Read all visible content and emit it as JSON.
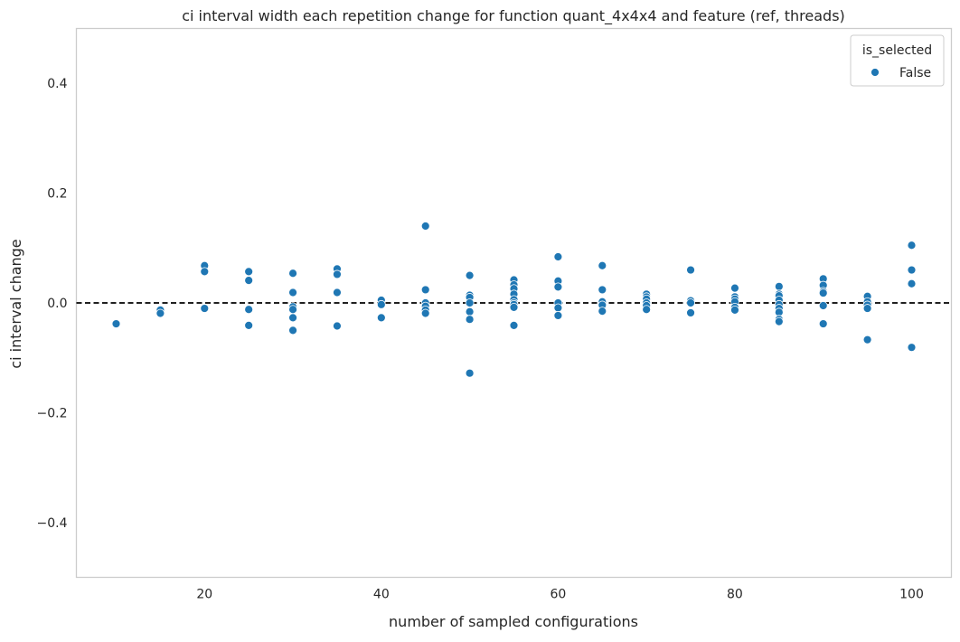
{
  "chart_data": {
    "type": "scatter",
    "title": "ci interval width each repetition change for function quant_4x4x4 and feature (ref, threads)",
    "xlabel": "number of sampled configurations",
    "ylabel": "ci interval change",
    "xlim": [
      5.5,
      104.5
    ],
    "ylim": [
      -0.5,
      0.5
    ],
    "xticks": [
      20,
      40,
      60,
      80,
      100
    ],
    "xtick_labels": [
      "20",
      "40",
      "60",
      "80",
      "100"
    ],
    "yticks": [
      -0.4,
      -0.2,
      0.0,
      0.2,
      0.4
    ],
    "ytick_labels": [
      "−0.4",
      "−0.2",
      "0.0",
      "0.2",
      "0.4"
    ],
    "grid": false,
    "reference_line": {
      "y": 0.0,
      "style": "dashed",
      "color": "#000000"
    },
    "legend": {
      "title": "is_selected",
      "placement": "top-right",
      "entries": [
        "False"
      ]
    },
    "series": [
      {
        "name": "False",
        "color": "#1f77b4",
        "points": [
          [
            10,
            -0.038
          ],
          [
            15,
            -0.013
          ],
          [
            15,
            -0.019
          ],
          [
            20,
            0.068
          ],
          [
            20,
            0.057
          ],
          [
            20,
            -0.01
          ],
          [
            25,
            0.057
          ],
          [
            25,
            0.041
          ],
          [
            25,
            -0.012
          ],
          [
            25,
            -0.041
          ],
          [
            30,
            0.054
          ],
          [
            30,
            0.019
          ],
          [
            30,
            -0.007
          ],
          [
            30,
            -0.012
          ],
          [
            30,
            -0.027
          ],
          [
            30,
            -0.05
          ],
          [
            35,
            0.062
          ],
          [
            35,
            0.052
          ],
          [
            35,
            0.019
          ],
          [
            35,
            -0.042
          ],
          [
            40,
            0.005
          ],
          [
            40,
            -0.003
          ],
          [
            40,
            -0.027
          ],
          [
            45,
            0.14
          ],
          [
            45,
            0.024
          ],
          [
            45,
            0.0
          ],
          [
            45,
            -0.006
          ],
          [
            45,
            -0.013
          ],
          [
            45,
            -0.019
          ],
          [
            50,
            0.05
          ],
          [
            50,
            0.014
          ],
          [
            50,
            0.01
          ],
          [
            50,
            0.0
          ],
          [
            50,
            -0.016
          ],
          [
            50,
            -0.03
          ],
          [
            50,
            -0.128
          ],
          [
            55,
            0.042
          ],
          [
            55,
            0.033
          ],
          [
            55,
            0.026
          ],
          [
            55,
            0.016
          ],
          [
            55,
            0.006
          ],
          [
            55,
            0.0
          ],
          [
            55,
            -0.003
          ],
          [
            55,
            -0.008
          ],
          [
            55,
            -0.041
          ],
          [
            60,
            0.084
          ],
          [
            60,
            0.04
          ],
          [
            60,
            0.029
          ],
          [
            60,
            0.0
          ],
          [
            60,
            -0.009
          ],
          [
            60,
            -0.023
          ],
          [
            65,
            0.068
          ],
          [
            65,
            0.024
          ],
          [
            65,
            0.002
          ],
          [
            65,
            -0.004
          ],
          [
            65,
            -0.015
          ],
          [
            70,
            0.016
          ],
          [
            70,
            0.011
          ],
          [
            70,
            0.007
          ],
          [
            70,
            0.0
          ],
          [
            70,
            -0.005
          ],
          [
            70,
            -0.012
          ],
          [
            75,
            0.06
          ],
          [
            75,
            0.004
          ],
          [
            75,
            0.0
          ],
          [
            75,
            -0.018
          ],
          [
            80,
            0.027
          ],
          [
            80,
            0.011
          ],
          [
            80,
            0.007
          ],
          [
            80,
            0.002
          ],
          [
            80,
            -0.008
          ],
          [
            80,
            -0.013
          ],
          [
            85,
            0.03
          ],
          [
            85,
            0.016
          ],
          [
            85,
            0.013
          ],
          [
            85,
            0.005
          ],
          [
            85,
            -0.003
          ],
          [
            85,
            -0.01
          ],
          [
            85,
            -0.017
          ],
          [
            85,
            -0.03
          ],
          [
            85,
            -0.034
          ],
          [
            90,
            0.044
          ],
          [
            90,
            0.032
          ],
          [
            90,
            0.021
          ],
          [
            90,
            0.018
          ],
          [
            90,
            -0.005
          ],
          [
            90,
            -0.038
          ],
          [
            95,
            0.012
          ],
          [
            95,
            0.002
          ],
          [
            95,
            -0.004
          ],
          [
            95,
            -0.01
          ],
          [
            95,
            -0.067
          ],
          [
            100,
            0.105
          ],
          [
            100,
            0.06
          ],
          [
            100,
            0.035
          ],
          [
            100,
            -0.081
          ]
        ]
      }
    ]
  }
}
